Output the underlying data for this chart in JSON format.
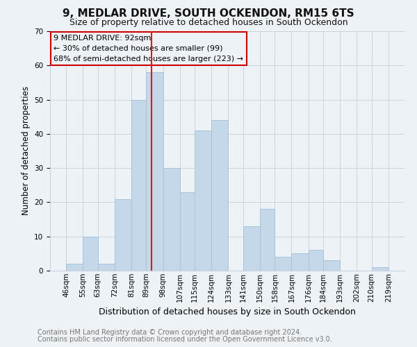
{
  "title": "9, MEDLAR DRIVE, SOUTH OCKENDON, RM15 6TS",
  "subtitle": "Size of property relative to detached houses in South Ockendon",
  "xlabel": "Distribution of detached houses by size in South Ockendon",
  "ylabel": "Number of detached properties",
  "bar_color": "#c5d8ea",
  "bar_edgecolor": "#a8c4d8",
  "grid_color": "#c8d4dc",
  "vline_color": "red",
  "vline_x": 92,
  "annotation_text": "9 MEDLAR DRIVE: 92sqm\n← 30% of detached houses are smaller (99)\n68% of semi-detached houses are larger (223) →",
  "annotation_box_edgecolor": "#cc0000",
  "bin_edges": [
    46,
    55,
    63,
    72,
    81,
    89,
    98,
    107,
    115,
    124,
    133,
    141,
    150,
    158,
    167,
    176,
    184,
    193,
    202,
    210,
    219
  ],
  "bin_counts": [
    2,
    10,
    2,
    21,
    50,
    58,
    30,
    23,
    41,
    44,
    0,
    13,
    18,
    4,
    5,
    6,
    3,
    0,
    0,
    1
  ],
  "ylim": [
    0,
    70
  ],
  "yticks": [
    0,
    10,
    20,
    30,
    40,
    50,
    60,
    70
  ],
  "footer_line1": "Contains HM Land Registry data © Crown copyright and database right 2024.",
  "footer_line2": "Contains public sector information licensed under the Open Government Licence v3.0.",
  "bg_color": "#edf2f7",
  "title_fontsize": 11,
  "subtitle_fontsize": 9,
  "ylabel_fontsize": 8.5,
  "xlabel_fontsize": 9,
  "tick_fontsize": 7.5,
  "annotation_fontsize": 8,
  "footer_fontsize": 7,
  "footer_color": "#777777"
}
